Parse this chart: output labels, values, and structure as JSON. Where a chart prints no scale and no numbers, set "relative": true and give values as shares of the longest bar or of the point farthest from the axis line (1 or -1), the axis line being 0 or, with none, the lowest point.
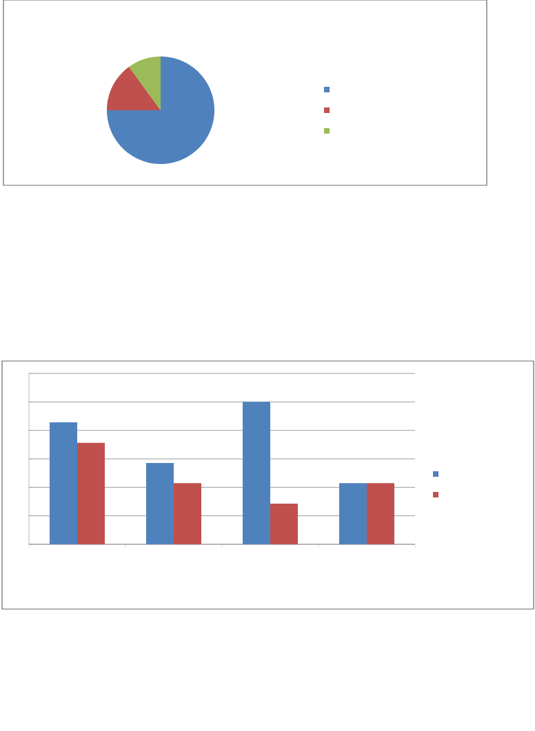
{
  "chart_data": [
    {
      "type": "pie",
      "categories": [
        null,
        null,
        null
      ],
      "values": [
        75,
        15,
        10
      ],
      "colors": [
        "#4f81bd",
        "#c0504d",
        "#9bbb59"
      ]
    },
    {
      "type": "bar",
      "categories": [
        null,
        null,
        null,
        null
      ],
      "relative": true,
      "grid": "y",
      "series": [
        {
          "color": "#4f81bd",
          "values": [
            0.857,
            0.571,
            1,
            0.429
          ]
        },
        {
          "color": "#c0504d",
          "values": [
            0.714,
            0.429,
            0.286,
            0.429
          ]
        }
      ]
    }
  ]
}
